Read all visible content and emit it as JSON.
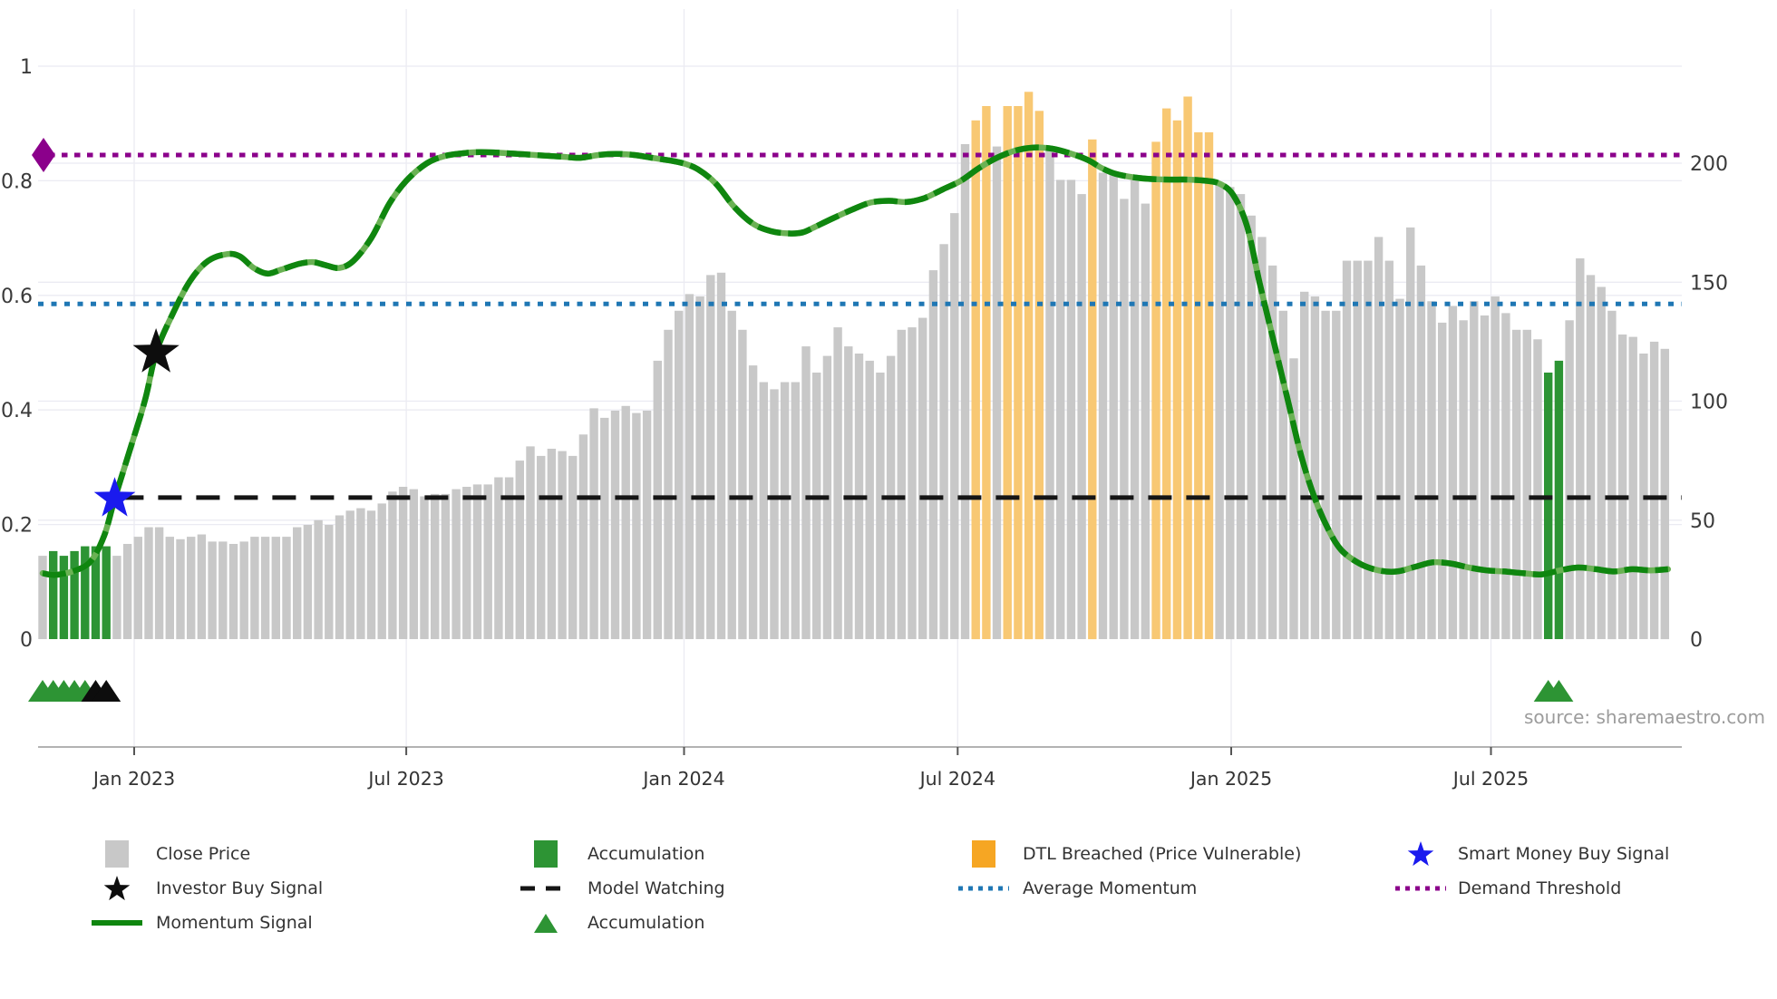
{
  "source_credit": "source: sharemaestro.com",
  "colors": {
    "close_price_bar": "#c8c8c8",
    "accumulation_bar": "#2d9434",
    "dtl_breached_bar": "#f8c873",
    "dtl_breached_legend": "#f6a623",
    "momentum_line": "#0f860f",
    "momentum_line_light": "#6ab254",
    "average_momentum": "#1f77b4",
    "demand_threshold": "#8B008B",
    "model_watching": "#151515",
    "smart_money_star": "#1a1aee",
    "investor_star": "#0d0d0d",
    "grid": "#ebebf2",
    "axis_line": "#b3b3b3",
    "axis_text": "#3a3a3a",
    "source_text": "#9c9c9c"
  },
  "chart_data": {
    "type": "bar",
    "title": "",
    "xlabel": "",
    "ylabel_left": "",
    "ylabel_right": "",
    "grid": true,
    "x_axis": {
      "tick_labels": [
        "Jan 2023",
        "Jul 2023",
        "Jan 2024",
        "Jul 2024",
        "Jan 2025",
        "Jul 2025"
      ],
      "tick_weeks": [
        8.64,
        34.3,
        60.5,
        86.3,
        112.1,
        136.6
      ]
    },
    "y_axis_left": {
      "tick_labels": [
        "1",
        "0.8",
        "0.6",
        "0.4",
        "0.2",
        "0"
      ],
      "tick_values": [
        1,
        0.8,
        0.6,
        0.4,
        0.2,
        0
      ],
      "range": [
        0,
        1.1
      ]
    },
    "y_axis_right": {
      "tick_labels": [
        "200",
        "150",
        "100",
        "50",
        "0"
      ],
      "tick_values": [
        200,
        150,
        100,
        50,
        0
      ],
      "range": [
        0,
        230
      ]
    },
    "close_price_weekly": [
      35,
      37,
      35,
      37,
      39,
      39,
      39,
      35,
      40,
      43,
      47,
      47,
      43,
      42,
      43,
      44,
      41,
      41,
      40,
      41,
      43,
      43,
      43,
      43,
      47,
      48,
      50,
      48,
      52,
      54,
      55,
      54,
      57,
      62,
      64,
      63,
      60,
      61,
      61,
      63,
      64,
      65,
      65,
      68,
      68,
      75,
      81,
      77,
      80,
      79,
      77,
      86,
      97,
      93,
      96,
      98,
      95,
      96,
      117,
      130,
      138,
      145,
      144,
      153,
      154,
      138,
      130,
      115,
      108,
      105,
      108,
      108,
      123,
      112,
      119,
      131,
      123,
      120,
      117,
      112,
      119,
      130,
      131,
      135,
      155,
      166,
      179,
      208,
      218,
      224,
      207,
      224,
      224,
      230,
      222,
      207,
      193,
      193,
      187,
      210,
      196,
      196,
      185,
      193,
      183,
      209,
      223,
      218,
      228,
      213,
      213,
      191,
      190,
      187,
      178,
      169,
      157,
      138,
      118,
      146,
      144,
      138,
      138,
      159,
      159,
      159,
      169,
      159,
      143,
      173,
      157,
      142,
      133,
      140,
      134,
      142,
      136,
      144,
      137,
      130,
      130,
      126,
      112,
      117,
      134,
      160,
      153,
      148,
      138,
      128,
      127,
      120,
      125,
      122
    ],
    "accumulation_week_indices": [
      1,
      2,
      3,
      4,
      5,
      6,
      142,
      143
    ],
    "dtl_breached_week_indices": [
      88,
      89,
      91,
      92,
      93,
      94,
      99,
      105,
      106,
      107,
      108,
      109,
      110
    ],
    "momentum_signal": [
      [
        0,
        0.115
      ],
      [
        1.1,
        0.112
      ],
      [
        2.8,
        0.118
      ],
      [
        4.5,
        0.135
      ],
      [
        5.8,
        0.18
      ],
      [
        6.8,
        0.245
      ],
      [
        8.4,
        0.34
      ],
      [
        9.7,
        0.42
      ],
      [
        10.7,
        0.5
      ],
      [
        12.2,
        0.565
      ],
      [
        13.9,
        0.625
      ],
      [
        15.6,
        0.66
      ],
      [
        17.4,
        0.672
      ],
      [
        18.6,
        0.668
      ],
      [
        19.9,
        0.648
      ],
      [
        21.2,
        0.638
      ],
      [
        22.5,
        0.645
      ],
      [
        24.2,
        0.655
      ],
      [
        25.5,
        0.658
      ],
      [
        26.8,
        0.652
      ],
      [
        28,
        0.648
      ],
      [
        29.3,
        0.66
      ],
      [
        31,
        0.7
      ],
      [
        32.7,
        0.76
      ],
      [
        34.3,
        0.8
      ],
      [
        36.2,
        0.83
      ],
      [
        37.9,
        0.843
      ],
      [
        39.6,
        0.848
      ],
      [
        41.3,
        0.85
      ],
      [
        43.9,
        0.848
      ],
      [
        46.4,
        0.845
      ],
      [
        49,
        0.842
      ],
      [
        50.7,
        0.84
      ],
      [
        52.4,
        0.845
      ],
      [
        54.1,
        0.847
      ],
      [
        55.8,
        0.845
      ],
      [
        57.5,
        0.84
      ],
      [
        59.3,
        0.835
      ],
      [
        60.5,
        0.83
      ],
      [
        61.8,
        0.82
      ],
      [
        63.5,
        0.795
      ],
      [
        65.2,
        0.755
      ],
      [
        67,
        0.725
      ],
      [
        68.7,
        0.712
      ],
      [
        70.4,
        0.708
      ],
      [
        71.7,
        0.71
      ],
      [
        72.9,
        0.72
      ],
      [
        74.6,
        0.735
      ],
      [
        76.4,
        0.75
      ],
      [
        78.1,
        0.762
      ],
      [
        79.8,
        0.765
      ],
      [
        81.5,
        0.763
      ],
      [
        83.2,
        0.77
      ],
      [
        84.9,
        0.785
      ],
      [
        86.6,
        0.8
      ],
      [
        88.3,
        0.822
      ],
      [
        90,
        0.84
      ],
      [
        91.8,
        0.853
      ],
      [
        93.5,
        0.858
      ],
      [
        95.2,
        0.856
      ],
      [
        96.9,
        0.848
      ],
      [
        98.6,
        0.836
      ],
      [
        99.9,
        0.822
      ],
      [
        101.2,
        0.812
      ],
      [
        102.9,
        0.806
      ],
      [
        104.6,
        0.803
      ],
      [
        106.3,
        0.802
      ],
      [
        108,
        0.802
      ],
      [
        109.7,
        0.8
      ],
      [
        111,
        0.795
      ],
      [
        112.3,
        0.775
      ],
      [
        113.6,
        0.72
      ],
      [
        114.8,
        0.62
      ],
      [
        116.1,
        0.52
      ],
      [
        117.4,
        0.42
      ],
      [
        118.7,
        0.32
      ],
      [
        120,
        0.245
      ],
      [
        121.3,
        0.19
      ],
      [
        122.5,
        0.155
      ],
      [
        124.2,
        0.132
      ],
      [
        126,
        0.12
      ],
      [
        127.7,
        0.118
      ],
      [
        129.4,
        0.126
      ],
      [
        131.1,
        0.134
      ],
      [
        132.8,
        0.132
      ],
      [
        134.5,
        0.125
      ],
      [
        136.2,
        0.12
      ],
      [
        137.9,
        0.118
      ],
      [
        139.6,
        0.115
      ],
      [
        141.4,
        0.113
      ],
      [
        143.1,
        0.12
      ],
      [
        144.8,
        0.125
      ],
      [
        146.5,
        0.122
      ],
      [
        148.2,
        0.118
      ],
      [
        149.9,
        0.122
      ],
      [
        151.6,
        0.12
      ],
      [
        153.3,
        0.122
      ]
    ],
    "reference_lines": {
      "demand_threshold": {
        "momentum_value": 0.845,
        "price_equivalent": 200
      },
      "average_momentum": {
        "momentum_value": 0.585
      },
      "model_watching": {
        "momentum_value": 0.247,
        "start_week": 7.3
      }
    },
    "markers": {
      "investor_buy_signal": {
        "week": 10.7,
        "value": 0.5
      },
      "smart_money_buy_signal": {
        "week": 6.8,
        "value": 0.245
      },
      "demand_threshold_start": {
        "week": 0,
        "value": 0.845
      },
      "accumulation_triangle_weeks": [
        0,
        1,
        2,
        3,
        4,
        142,
        143
      ],
      "black_triangle_weeks": [
        5,
        6
      ]
    }
  },
  "legend": {
    "items": [
      {
        "col": 0,
        "row": 0,
        "swatch": "square",
        "colorKey": "close_price_bar",
        "label": "Close Price",
        "name": "legend-close-price"
      },
      {
        "col": 1,
        "row": 0,
        "swatch": "square",
        "colorKey": "accumulation_bar",
        "label": "Accumulation",
        "name": "legend-accumulation-bars"
      },
      {
        "col": 2,
        "row": 0,
        "swatch": "square",
        "colorKey": "dtl_breached_legend",
        "label": "DTL Breached (Price Vulnerable)",
        "name": "legend-dtl-breached"
      },
      {
        "col": 3,
        "row": 0,
        "swatch": "star",
        "colorKey": "smart_money_star",
        "label": "Smart Money Buy Signal",
        "name": "legend-smart-money-buy-signal"
      },
      {
        "col": 0,
        "row": 1,
        "swatch": "star",
        "colorKey": "investor_star",
        "label": "Investor Buy Signal",
        "name": "legend-investor-buy-signal"
      },
      {
        "col": 1,
        "row": 1,
        "swatch": "dash",
        "colorKey": "model_watching",
        "label": "Model Watching",
        "name": "legend-model-watching"
      },
      {
        "col": 2,
        "row": 1,
        "swatch": "dots",
        "colorKey": "average_momentum",
        "label": "Average Momentum",
        "name": "legend-average-momentum"
      },
      {
        "col": 3,
        "row": 1,
        "swatch": "dots",
        "colorKey": "demand_threshold",
        "label": "Demand Threshold",
        "name": "legend-demand-threshold"
      },
      {
        "col": 0,
        "row": 2,
        "swatch": "line",
        "colorKey": "momentum_line",
        "label": "Momentum Signal",
        "name": "legend-momentum-signal"
      },
      {
        "col": 1,
        "row": 2,
        "swatch": "triangle",
        "colorKey": "accumulation_bar",
        "label": "Accumulation",
        "name": "legend-accumulation-marker"
      }
    ]
  }
}
